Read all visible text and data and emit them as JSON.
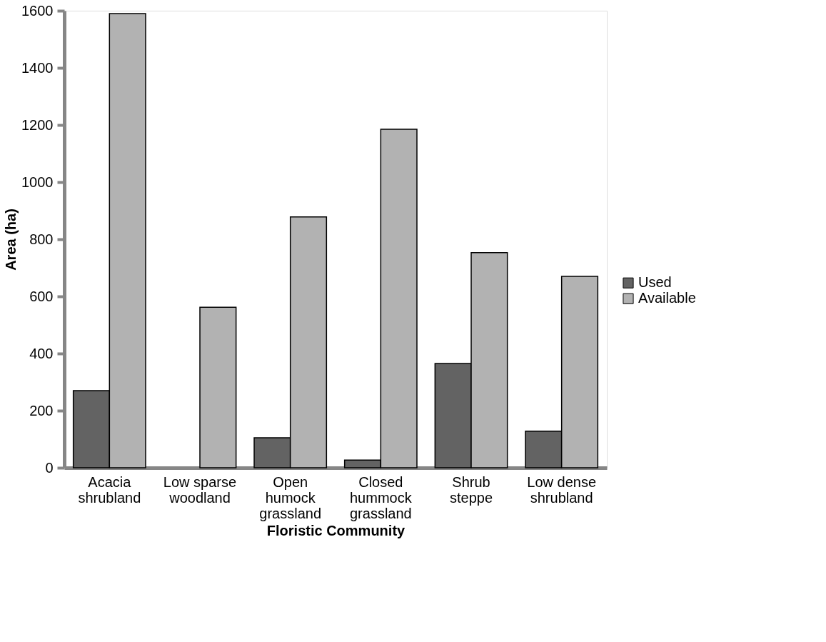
{
  "chart_data": {
    "type": "bar",
    "xlabel": "Floristic Community",
    "ylabel": "Area (ha)",
    "categories": [
      "Acacia shrubland",
      "Low sparse woodland",
      "Open humock grassland",
      "Closed hummock grassland",
      "Shrub steppe",
      "Low dense shrubland"
    ],
    "series": [
      {
        "name": "Used",
        "color": "#636363",
        "values": [
          270,
          0,
          105,
          27,
          365,
          128
        ]
      },
      {
        "name": "Available",
        "color": "#b2b2b2",
        "values": [
          1590,
          562,
          878,
          1185,
          753,
          670
        ]
      }
    ],
    "ylim": [
      0,
      1600
    ],
    "yticks": [
      0,
      200,
      400,
      600,
      800,
      1000,
      1200,
      1400,
      1600
    ],
    "grid": false,
    "legend": "right"
  }
}
